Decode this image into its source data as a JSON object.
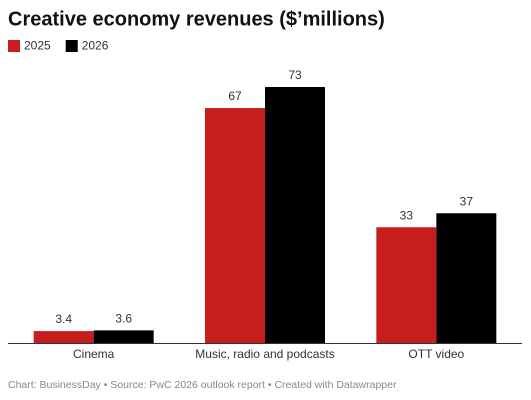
{
  "chart_data": {
    "type": "bar",
    "title": "Creative economy revenues ($’millions)",
    "categories": [
      "Cinema",
      "Music, radio and podcasts",
      "OTT video"
    ],
    "series": [
      {
        "name": "2025",
        "color": "#c71e1d",
        "values": [
          3.4,
          67,
          33
        ]
      },
      {
        "name": "2026",
        "color": "#000000",
        "values": [
          3.6,
          73,
          37
        ]
      }
    ],
    "source": "Chart: BusinessDay • Source: PwC 2026 outlook report • Created with Datawrapper"
  }
}
